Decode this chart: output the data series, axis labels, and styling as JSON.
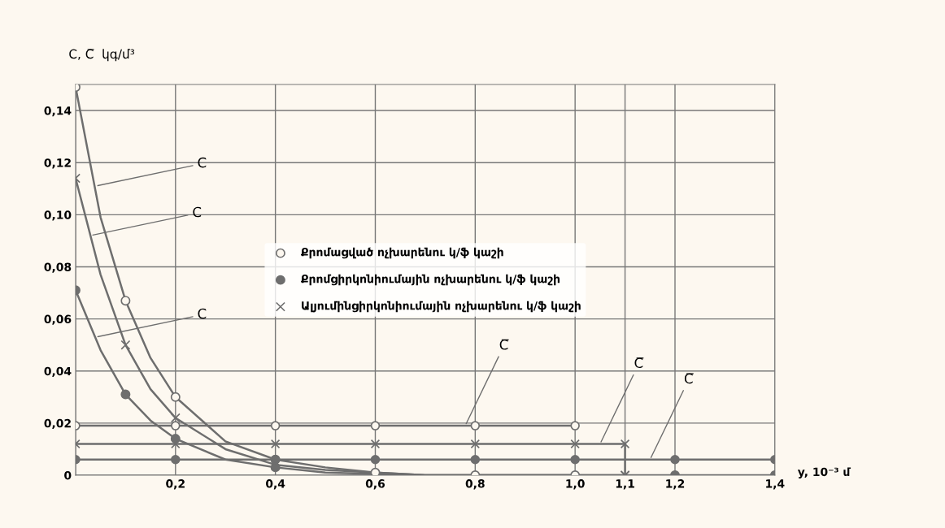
{
  "chart_data": {
    "type": "line",
    "xlabel": "y, 10⁻³ մ",
    "ylabel": "C, C̅  կգ/մ³",
    "xlim": [
      0,
      1.4
    ],
    "ylim": [
      0,
      0.15
    ],
    "xticks": [
      {
        "value": 0,
        "label": null
      },
      {
        "value": 0.2,
        "label": "0,2"
      },
      {
        "value": 0.4,
        "label": "0,4"
      },
      {
        "value": 0.6,
        "label": "0,6"
      },
      {
        "value": 0.8,
        "label": "0,8"
      },
      {
        "value": 1.0,
        "label": "1,0"
      },
      {
        "value": 1.1,
        "label": "1,1"
      },
      {
        "value": 1.2,
        "label": "1,2"
      },
      {
        "value": 1.4,
        "label": "1,4"
      }
    ],
    "yticks": [
      {
        "value": 0,
        "label": "0"
      },
      {
        "value": 0.02,
        "label": "0,02"
      },
      {
        "value": 0.04,
        "label": "0,04"
      },
      {
        "value": 0.06,
        "label": "0,06"
      },
      {
        "value": 0.08,
        "label": "0,08"
      },
      {
        "value": 0.1,
        "label": "0,10"
      },
      {
        "value": 0.12,
        "label": "0,12"
      },
      {
        "value": 0.14,
        "label": "0,14"
      }
    ],
    "grid": true,
    "legend": "center",
    "line_style": "solid",
    "series": [
      {
        "marker": "none",
        "color": "#6e6e6e",
        "x": [
          0,
          0.05,
          0.1,
          0.15,
          0.2,
          0.3,
          0.4,
          0.5,
          0.6,
          0.7,
          0.8,
          1.0
        ],
        "values": [
          0.149,
          0.099,
          0.067,
          0.045,
          0.03,
          0.013,
          0.006,
          0.003,
          0.001,
          0.0,
          0.0,
          0.0
        ]
      },
      {
        "marker": "none",
        "color": "#6e6e6e",
        "x": [
          0,
          0.05,
          0.1,
          0.15,
          0.2,
          0.3,
          0.4,
          0.5,
          0.6,
          0.7,
          1.1
        ],
        "values": [
          0.114,
          0.077,
          0.05,
          0.033,
          0.022,
          0.01,
          0.004,
          0.002,
          0.001,
          0.0,
          0.0
        ]
      },
      {
        "marker": "none",
        "color": "#6e6e6e",
        "x": [
          0,
          0.05,
          0.1,
          0.15,
          0.2,
          0.3,
          0.4,
          0.5,
          0.6,
          0.7,
          0.8,
          1.4
        ],
        "values": [
          0.071,
          0.048,
          0.031,
          0.021,
          0.014,
          0.006,
          0.003,
          0.001,
          0.0005,
          0.0,
          0.0,
          0.0
        ]
      },
      {
        "type": "scatter",
        "name": "Քրոմացված ոչխարենու կ/ֆ կաշի",
        "marker": "circle",
        "color": "#6e6e6e",
        "colors": [
          "#fdf8f0",
          "#fdf8f0",
          "#fdf8f0",
          "#fdf8f0",
          "#fdf8f0",
          "#fdf8f0",
          "#fdf8f0"
        ],
        "x": [
          0,
          0.1,
          0.2,
          0.4,
          0.6,
          0.8,
          1.0
        ],
        "values": [
          0.149,
          0.067,
          0.03,
          0.006,
          0.001,
          0.0,
          0.0
        ]
      },
      {
        "type": "scatter",
        "name": "Քրոմցիրկոնիումային ոչխարենու կ/ֆ կաշի",
        "marker": "circle",
        "color": "#6e6e6e",
        "x": [
          0,
          0.1,
          0.2,
          0.4,
          1.2,
          1.4
        ],
        "values": [
          0.071,
          0.031,
          0.014,
          0.003,
          0.0,
          0.0
        ]
      },
      {
        "type": "scatter",
        "name": "Ալյումինցիրկոնիումային ոչխարենու կ/ֆ կաշի",
        "marker": "cross",
        "color": "#6e6e6e",
        "x": [
          0,
          0.1,
          0.2,
          1.1
        ],
        "values": [
          0.114,
          0.05,
          0.022,
          0.0
        ]
      },
      {
        "type": "line",
        "marker": "circle",
        "color": "#6e6e6e",
        "colors": [
          "#fdf8f0",
          "#fdf8f0",
          "#fdf8f0",
          "#fdf8f0",
          "#fdf8f0",
          "#fdf8f0"
        ],
        "x": [
          0,
          0.2,
          0.4,
          0.6,
          0.8,
          1.0
        ],
        "values": [
          0.019,
          0.019,
          0.019,
          0.019,
          0.019,
          0.019
        ]
      },
      {
        "type": "line",
        "marker": "cross",
        "color": "#6e6e6e",
        "x": [
          0,
          0.2,
          0.4,
          0.6,
          0.8,
          1.0,
          1.1,
          1.1
        ],
        "values": [
          0.012,
          0.012,
          0.012,
          0.012,
          0.012,
          0.012,
          0.012,
          0.0
        ]
      },
      {
        "type": "line",
        "marker": "circle",
        "color": "#6e6e6e",
        "x": [
          0,
          0.2,
          0.4,
          0.6,
          0.8,
          1.0,
          1.2,
          1.4
        ],
        "values": [
          0.006,
          0.006,
          0.006,
          0.006,
          0.006,
          0.006,
          0.006,
          0.006
        ]
      }
    ],
    "annotations": [
      {
        "text": "C",
        "x": 0.04,
        "y": 0.111
      },
      {
        "text": "C",
        "x": 0.03,
        "y": 0.092
      },
      {
        "text": "C",
        "x": 0.04,
        "y": 0.053
      },
      {
        "text": "C̅",
        "x": 0.78,
        "y": 0.019
      },
      {
        "text": "C̅",
        "x": 1.05,
        "y": 0.012
      },
      {
        "text": "C̅",
        "x": 1.15,
        "y": 0.006
      }
    ]
  }
}
